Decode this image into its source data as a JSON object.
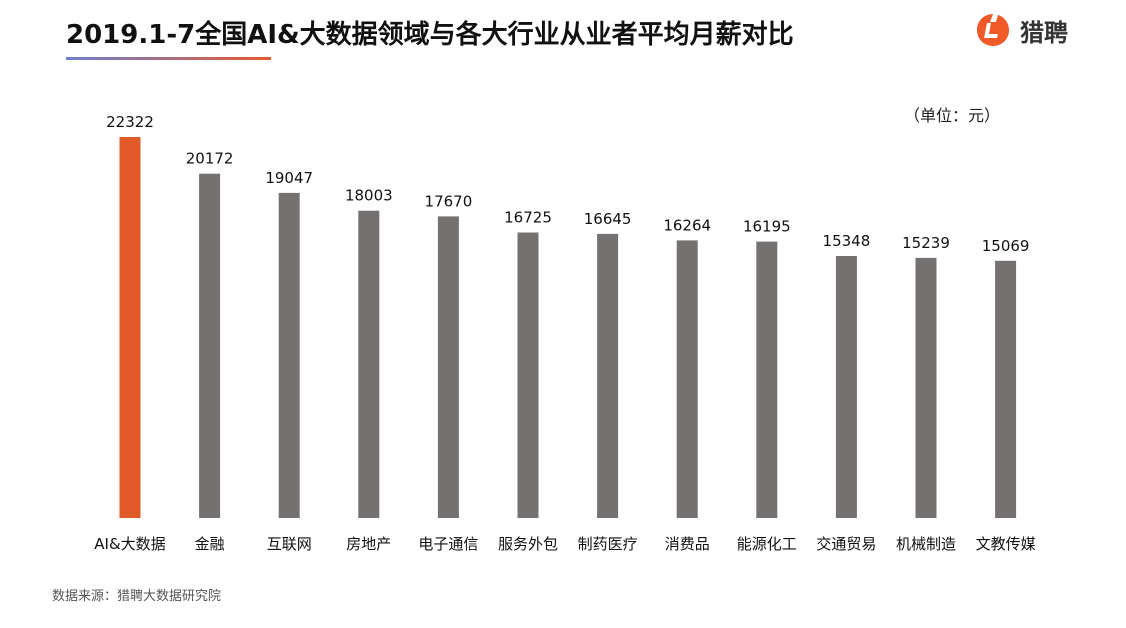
{
  "header": {
    "title": "2019.1-7全国AI&大数据领域与各大行业从业者平均月薪对比",
    "brand_name": "猎聘",
    "brand_icon": "liepin-logo-icon",
    "brand_color": "#f05a28"
  },
  "unit_label": "（单位：元）",
  "source_note": "数据来源：猎聘大数据研究院",
  "colors": {
    "highlight_bar": "#e05a28",
    "default_bar": "#767171",
    "title_underline_start": "#6f7fd0",
    "title_underline_end": "#e35b2c"
  },
  "chart_data": {
    "type": "bar",
    "categories": [
      "AI&大数据",
      "金融",
      "互联网",
      "房地产",
      "电子通信",
      "服务外包",
      "制药医疗",
      "消费品",
      "能源化工",
      "交通贸易",
      "机械制造",
      "文教传媒"
    ],
    "values": [
      22322,
      20172,
      19047,
      18003,
      17670,
      16725,
      16645,
      16264,
      16195,
      15348,
      15239,
      15069
    ],
    "highlight_index": 0,
    "ylim": [
      0,
      22322
    ],
    "grid": false,
    "legend": "none"
  }
}
